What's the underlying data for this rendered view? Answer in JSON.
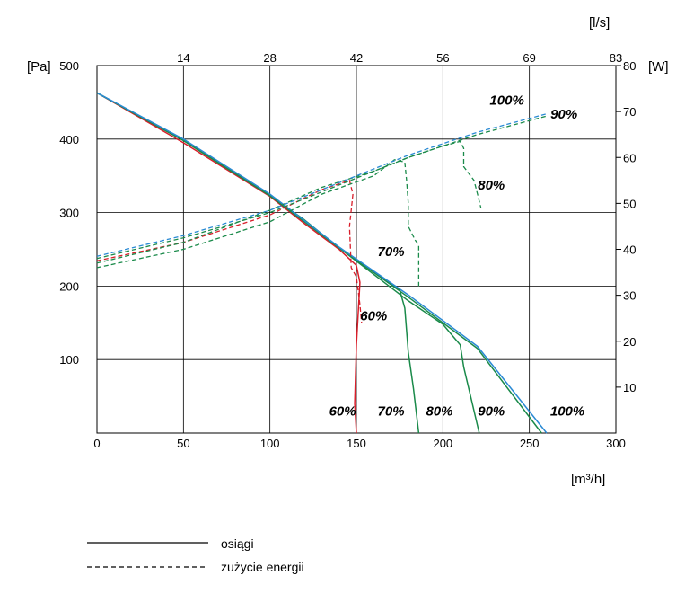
{
  "chart_data": {
    "type": "line",
    "xlabel": "[m³/h]",
    "ylabel_left": "[Pa]",
    "ylabel_right": "[W]",
    "xlabel_top": "[l/s]",
    "xlim": [
      0,
      300
    ],
    "ylim_left": [
      0,
      500
    ],
    "ylim_right": [
      0,
      80
    ],
    "grid": true,
    "x_ticks": [
      0,
      50,
      100,
      150,
      200,
      250,
      300
    ],
    "y_left_ticks": [
      100,
      200,
      300,
      400,
      500
    ],
    "y_right_ticks": [
      10,
      20,
      30,
      40,
      50,
      60,
      70,
      80
    ],
    "top_ticks": [
      "14",
      "28",
      "42",
      "56",
      "69",
      "83"
    ],
    "top_tick_positions_m3h": [
      50,
      100,
      150,
      200,
      250,
      300
    ],
    "colors": {
      "red": "#d81e2a",
      "green": "#1a8a4a",
      "blue": "#2a8ad4",
      "grid": "#000000"
    },
    "performance_series": [
      {
        "name": "60%",
        "color": "#d81e2a",
        "points": [
          [
            0,
            463
          ],
          [
            50,
            395
          ],
          [
            100,
            322
          ],
          [
            120,
            285
          ],
          [
            140,
            250
          ],
          [
            150,
            228
          ],
          [
            152,
            205
          ],
          [
            150,
            120
          ],
          [
            149,
            40
          ],
          [
            150,
            0
          ]
        ]
      },
      {
        "name": "70%",
        "color": "#1a8a4a",
        "points": [
          [
            0,
            463
          ],
          [
            50,
            398
          ],
          [
            100,
            323
          ],
          [
            120,
            290
          ],
          [
            140,
            252
          ],
          [
            160,
            220
          ],
          [
            175,
            195
          ],
          [
            178,
            170
          ],
          [
            180,
            110
          ],
          [
            183,
            60
          ],
          [
            186,
            0
          ]
        ]
      },
      {
        "name": "80%",
        "color": "#1a8a4a",
        "points": [
          [
            0,
            463
          ],
          [
            50,
            398
          ],
          [
            100,
            323
          ],
          [
            140,
            252
          ],
          [
            180,
            180
          ],
          [
            200,
            148
          ],
          [
            210,
            120
          ],
          [
            212,
            90
          ],
          [
            216,
            50
          ],
          [
            221,
            0
          ]
        ]
      },
      {
        "name": "90%",
        "color": "#1a8a4a",
        "points": [
          [
            0,
            463
          ],
          [
            50,
            398
          ],
          [
            100,
            323
          ],
          [
            140,
            252
          ],
          [
            180,
            185
          ],
          [
            220,
            115
          ],
          [
            257,
            0
          ]
        ]
      },
      {
        "name": "100%",
        "color": "#2a8ad4",
        "points": [
          [
            0,
            463
          ],
          [
            50,
            400
          ],
          [
            100,
            325
          ],
          [
            140,
            253
          ],
          [
            180,
            188
          ],
          [
            220,
            118
          ],
          [
            260,
            0
          ]
        ]
      }
    ],
    "power_series": [
      {
        "name": "60%",
        "color": "#d81e2a",
        "points": [
          [
            0,
            37.5
          ],
          [
            50,
            41.5
          ],
          [
            100,
            47.5
          ],
          [
            130,
            53
          ],
          [
            146,
            55
          ],
          [
            148,
            52
          ],
          [
            146,
            45
          ],
          [
            147,
            36
          ],
          [
            150,
            34
          ],
          [
            152,
            28
          ],
          [
            153,
            24
          ]
        ]
      },
      {
        "name": "70%",
        "color": "#1a8a4a",
        "points": [
          [
            0,
            36
          ],
          [
            50,
            40
          ],
          [
            100,
            46
          ],
          [
            130,
            52
          ],
          [
            160,
            56
          ],
          [
            172,
            59.5
          ],
          [
            178,
            59
          ],
          [
            179,
            55
          ],
          [
            180,
            50
          ],
          [
            180,
            45
          ],
          [
            184,
            42
          ],
          [
            186,
            41
          ],
          [
            186,
            32
          ]
        ]
      },
      {
        "name": "80%",
        "color": "#1a8a4a",
        "points": [
          [
            0,
            37
          ],
          [
            50,
            41.5
          ],
          [
            100,
            48.5
          ],
          [
            130,
            53.5
          ],
          [
            160,
            57
          ],
          [
            180,
            60
          ],
          [
            200,
            62.5
          ],
          [
            210,
            63.5
          ],
          [
            212,
            62
          ],
          [
            212,
            58
          ],
          [
            218,
            55
          ],
          [
            220,
            52
          ],
          [
            222,
            49
          ]
        ]
      },
      {
        "name": "90%",
        "color": "#1a8a4a",
        "points": [
          [
            0,
            38
          ],
          [
            50,
            42.5
          ],
          [
            100,
            48
          ],
          [
            140,
            54
          ],
          [
            180,
            60
          ],
          [
            220,
            65
          ],
          [
            260,
            69
          ]
        ]
      },
      {
        "name": "100%",
        "color": "#2a8ad4",
        "points": [
          [
            0,
            38.5
          ],
          [
            50,
            43
          ],
          [
            100,
            48.5
          ],
          [
            140,
            54.5
          ],
          [
            180,
            60.5
          ],
          [
            220,
            65.5
          ],
          [
            260,
            69.5
          ]
        ]
      }
    ],
    "annotations": {
      "top_percent": [
        {
          "label": "100%",
          "x": 237,
          "y_w": 71.5
        },
        {
          "label": "90%",
          "x": 270,
          "y_w": 68.5
        },
        {
          "label": "80%",
          "x": 228,
          "y_w": 53
        },
        {
          "label": "70%",
          "x": 170,
          "y_w": 38.5
        },
        {
          "label": "60%",
          "x": 160,
          "y_w": 24.5
        }
      ],
      "bottom_percent": [
        {
          "label": "60%",
          "x": 142,
          "y_pa": 30
        },
        {
          "label": "70%",
          "x": 170,
          "y_pa": 30
        },
        {
          "label": "80%",
          "x": 198,
          "y_pa": 30
        },
        {
          "label": "90%",
          "x": 228,
          "y_pa": 30
        },
        {
          "label": "100%",
          "x": 272,
          "y_pa": 30
        }
      ]
    },
    "legend": [
      {
        "label": "osiągi",
        "style": "solid"
      },
      {
        "label": "zużycie energii",
        "style": "dashed"
      }
    ]
  }
}
